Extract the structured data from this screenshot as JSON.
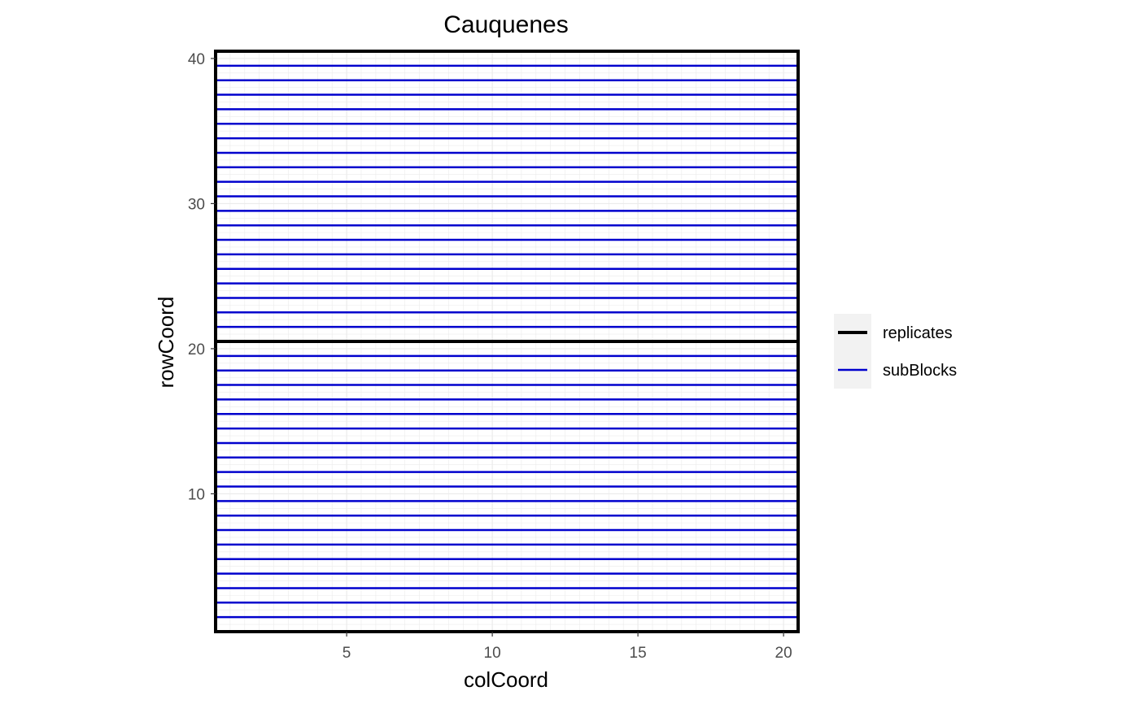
{
  "chart_data": {
    "type": "line",
    "title": "Cauquenes",
    "xlabel": "colCoord",
    "ylabel": "rowCoord",
    "xlim": [
      0.5,
      20.5
    ],
    "ylim": [
      0.5,
      40.5
    ],
    "x_ticks": [
      5,
      10,
      15,
      20
    ],
    "y_ticks": [
      10,
      20,
      30,
      40
    ],
    "grid": true,
    "legend_position": "right",
    "colors": {
      "replicates": "#000000",
      "subBlocks": "#0000cd",
      "grid": "#ebebeb",
      "legend_key_background": "#f2f2f2",
      "tick_label": "#4d4d4d"
    },
    "series": [
      {
        "name": "replicates",
        "segments": [
          {
            "x": [
              0.5,
              20.5
            ],
            "y": [
              0.5,
              0.5
            ]
          },
          {
            "x": [
              0.5,
              20.5
            ],
            "y": [
              20.5,
              20.5
            ]
          },
          {
            "x": [
              0.5,
              20.5
            ],
            "y": [
              40.5,
              40.5
            ]
          },
          {
            "x": [
              0.5,
              0.5
            ],
            "y": [
              0.5,
              40.5
            ]
          },
          {
            "x": [
              20.5,
              20.5
            ],
            "y": [
              0.5,
              40.5
            ]
          }
        ]
      },
      {
        "name": "subBlocks",
        "horizontal_lines_at_y": [
          1.5,
          2.5,
          3.5,
          4.5,
          5.5,
          6.5,
          7.5,
          8.5,
          9.5,
          10.5,
          11.5,
          12.5,
          13.5,
          14.5,
          15.5,
          16.5,
          17.5,
          18.5,
          19.5,
          21.5,
          22.5,
          23.5,
          24.5,
          25.5,
          26.5,
          27.5,
          28.5,
          29.5,
          30.5,
          31.5,
          32.5,
          33.5,
          34.5,
          35.5,
          36.5,
          37.5,
          38.5,
          39.5
        ],
        "x_range": [
          0.5,
          20.5
        ]
      }
    ],
    "legend": [
      "replicates",
      "subBlocks"
    ]
  }
}
